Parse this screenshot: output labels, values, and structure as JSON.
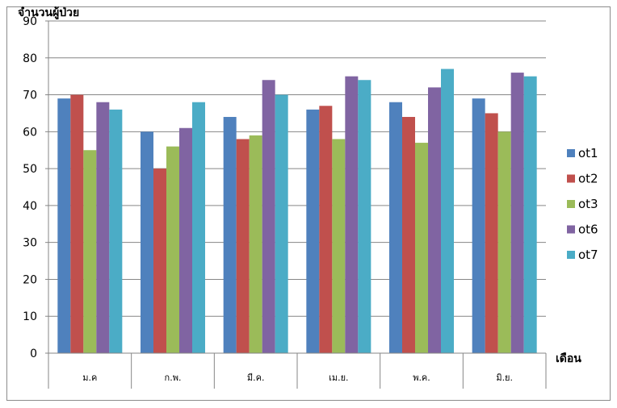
{
  "chart_data": {
    "type": "bar",
    "ylabel": "จำนวนผู้ป่วย",
    "xlabel": "เดือน",
    "categories": [
      "ม.ค",
      "ก.พ.",
      "มี.ค.",
      "เม.ย.",
      "พ.ค.",
      "มิ.ย."
    ],
    "ylim": [
      0,
      90
    ],
    "yticks": [
      0,
      10,
      20,
      30,
      40,
      50,
      60,
      70,
      80,
      90
    ],
    "grid": true,
    "legend_position": "right",
    "series": [
      {
        "name": "ot1",
        "color": "#4F81BD",
        "values": [
          69,
          60,
          64,
          66,
          68,
          69
        ]
      },
      {
        "name": "ot2",
        "color": "#C0504D",
        "values": [
          70,
          50,
          58,
          67,
          64,
          65
        ]
      },
      {
        "name": "ot3",
        "color": "#9BBB59",
        "values": [
          55,
          56,
          59,
          58,
          57,
          60
        ]
      },
      {
        "name": "ot6",
        "color": "#8064A2",
        "values": [
          68,
          61,
          74,
          75,
          72,
          76
        ]
      },
      {
        "name": "ot7",
        "color": "#4BACC6",
        "values": [
          66,
          68,
          70,
          74,
          77,
          75
        ]
      }
    ]
  }
}
